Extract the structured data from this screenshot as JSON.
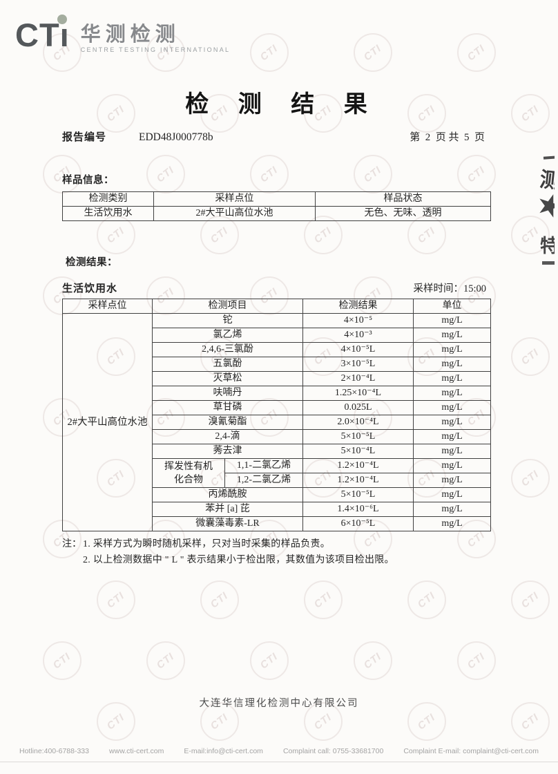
{
  "logo": {
    "cti_prefix": "CT",
    "cti_stem": "ı",
    "cn": "华测检测",
    "en": "CENTRE TESTING INTERNATIONAL",
    "dot_color": "#a4ad9f"
  },
  "title": "检 测 结 果",
  "report": {
    "label": "报告编号",
    "number": "EDD48J000778b",
    "page_info": "第  2  页 共  5  页"
  },
  "sample_info": {
    "title": "样品信息：",
    "headers": [
      "检测类别",
      "采样点位",
      "样品状态"
    ],
    "row": {
      "category": "生活饮用水",
      "site": "2#大平山高位水池",
      "status": "无色、无味、透明"
    }
  },
  "results": {
    "title": "检测结果：",
    "water_type": "生活饮用水",
    "sampling_time_label": "采样时间：",
    "sampling_time": "15:00",
    "headers": [
      "采样点位",
      "检测项目",
      "检测结果",
      "单位"
    ],
    "site": "2#大平山高位水池",
    "voc_group": {
      "line1": "挥发性有机",
      "line2": "化合物"
    },
    "rows": [
      {
        "item": "铊",
        "result": "4×10⁻⁵",
        "unit": "mg/L"
      },
      {
        "item": "氯乙烯",
        "result": "4×10⁻³",
        "unit": "mg/L"
      },
      {
        "item": "2,4,6-三氯酚",
        "result": "4×10⁻⁵L",
        "unit": "mg/L"
      },
      {
        "item": "五氯酚",
        "result": "3×10⁻⁵L",
        "unit": "mg/L"
      },
      {
        "item": "灭草松",
        "result": "2×10⁻⁴L",
        "unit": "mg/L"
      },
      {
        "item": "呋喃丹",
        "result": "1.25×10⁻⁴L",
        "unit": "mg/L"
      },
      {
        "item": "草甘磷",
        "result": "0.025L",
        "unit": "mg/L"
      },
      {
        "item": "溴氰菊酯",
        "result": "2.0×10⁻⁴L",
        "unit": "mg/L"
      },
      {
        "item": "2,4-滴",
        "result": "5×10⁻⁵L",
        "unit": "mg/L"
      },
      {
        "item": "莠去津",
        "result": "5×10⁻⁴L",
        "unit": "mg/L"
      },
      {
        "item": "1,1-二氯乙烯",
        "result": "1.2×10⁻⁴L",
        "unit": "mg/L"
      },
      {
        "item": "1,2-二氯乙烯",
        "result": "1.2×10⁻⁴L",
        "unit": "mg/L"
      },
      {
        "item": "丙烯酰胺",
        "result": "5×10⁻⁵L",
        "unit": "mg/L"
      },
      {
        "item": "苯并 [a] 芘",
        "result": "1.4×10⁻⁶L",
        "unit": "mg/L"
      },
      {
        "item": "微囊藻毒素-LR",
        "result": "6×10⁻⁵L",
        "unit": "mg/L"
      }
    ]
  },
  "notes": {
    "label": "注：",
    "line1": "1. 采样方式为瞬时随机采样，只对当时采集的样品负责。",
    "line2": "2. 以上检测数据中 \" L \" 表示结果小于检出限，其数值为该项目检出限。"
  },
  "company": "大连华信理化检测中心有限公司",
  "footer": {
    "hotline": "Hotline:400-6788-333",
    "website": "www.cti-cert.com",
    "email": "E-mail:info@cti-cert.com",
    "complaint_call": "Complaint call: 0755-33681700",
    "complaint_email": "Complaint E-mail: complaint@cti-cert.com"
  },
  "edge_stamp": {
    "char1": "测",
    "star": "★",
    "char2": "特"
  },
  "watermark": {
    "text": "CTI"
  }
}
